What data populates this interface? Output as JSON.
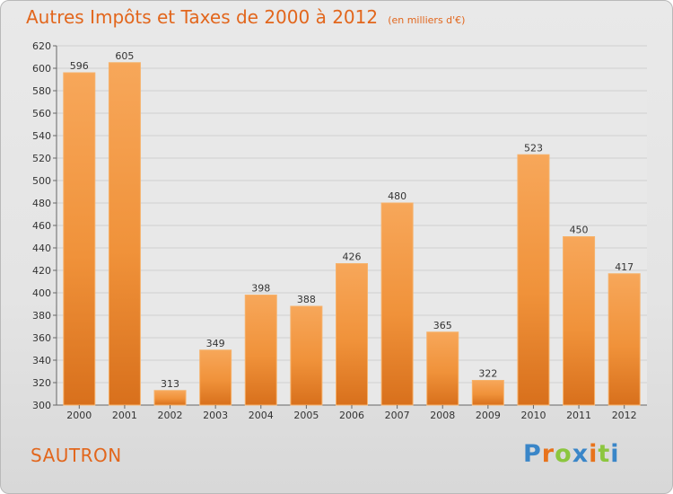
{
  "chart_data": {
    "type": "bar",
    "title": "Autres Impôts et Taxes de 2000 à 2012",
    "subtitle": "(en milliers d'€)",
    "categories": [
      "2000",
      "2001",
      "2002",
      "2003",
      "2004",
      "2005",
      "2006",
      "2007",
      "2008",
      "2009",
      "2010",
      "2011",
      "2012"
    ],
    "values": [
      596,
      605,
      313,
      349,
      398,
      388,
      426,
      480,
      365,
      322,
      523,
      450,
      417
    ],
    "ylim": [
      300,
      620
    ],
    "yticks": [
      300,
      320,
      340,
      360,
      380,
      400,
      420,
      440,
      460,
      480,
      500,
      520,
      540,
      560,
      580,
      600,
      620
    ],
    "grid": true,
    "bar_color": "#f08a2e"
  },
  "commune": "SAUTRON",
  "brand": {
    "letters": [
      "P",
      "r",
      "o",
      "x",
      "i",
      "t",
      "i"
    ],
    "colors": [
      "#3a86c8",
      "#e8731c",
      "#8cc63f",
      "#3a86c8",
      "#e8731c",
      "#8cc63f",
      "#3a86c8"
    ]
  }
}
